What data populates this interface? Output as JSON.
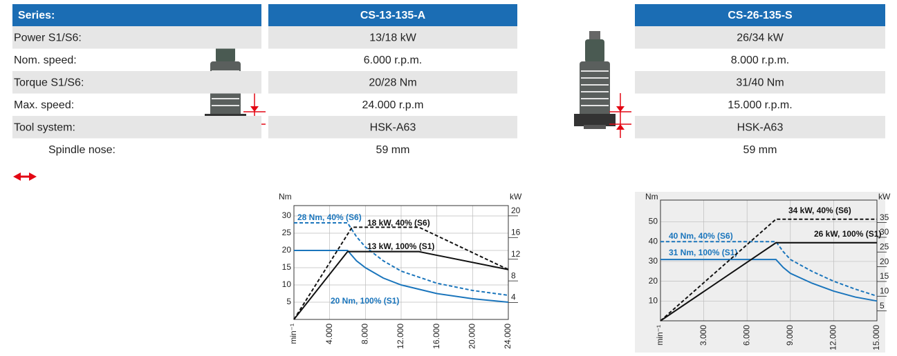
{
  "table": {
    "header": [
      "Series:",
      "CS-13-135-A",
      "CS-26-135-S"
    ],
    "rows": [
      [
        "Power S1/S6:",
        "13/18 kW",
        "26/34 kW"
      ],
      [
        "Nom. speed:",
        "6.000 r.p.m.",
        "8.000 r.p.m."
      ],
      [
        "Torque S1/S6:",
        "20/28 Nm",
        "31/40 Nm"
      ],
      [
        "Max. speed:",
        "24.000 r.p.m",
        "15.000 r.p.m."
      ],
      [
        "Tool system:",
        "HSK-A63",
        "HSK-A63"
      ],
      [
        "Spindle nose:",
        "59 mm",
        "59 mm"
      ]
    ]
  },
  "chart_data": [
    {
      "type": "line",
      "x_label": "min⁻¹",
      "y_label": "Nm",
      "y2_label": "kW",
      "grid": true,
      "background": "#ffffff",
      "xlim": [
        0,
        24000
      ],
      "xticks": [
        {
          "value": 4000,
          "label": "4.000"
        },
        {
          "value": 8000,
          "label": "8.000"
        },
        {
          "value": 12000,
          "label": "12.000"
        },
        {
          "value": 16000,
          "label": "16.000"
        },
        {
          "value": 20000,
          "label": "20.000"
        },
        {
          "value": 24000,
          "label": "24.000"
        }
      ],
      "ylim": [
        0,
        33
      ],
      "yticks": [
        5,
        10,
        15,
        20,
        25,
        30
      ],
      "y2lim": [
        0,
        21
      ],
      "y2ticks": [
        4,
        8,
        12,
        16,
        20
      ],
      "series": [
        {
          "name": "28 Nm, 40% (S6)",
          "color": "#1a75bc",
          "style": "dashed",
          "x": [
            0,
            6000,
            7000,
            8000,
            10000,
            12000,
            16000,
            20000,
            24000
          ],
          "values": [
            28,
            28,
            24,
            21,
            17,
            14,
            10.5,
            8.4,
            7
          ]
        },
        {
          "name": "20 Nm, 100% (S1)",
          "color": "#1a75bc",
          "style": "solid",
          "x": [
            0,
            6000,
            7000,
            8000,
            10000,
            12000,
            16000,
            20000,
            24000
          ],
          "values": [
            20,
            20,
            17,
            15,
            12,
            10,
            7.5,
            6,
            5
          ]
        },
        {
          "name": "18 kW, 40% (S6)",
          "color": "#111111",
          "style": "dashed",
          "axis": "y2",
          "x": [
            0,
            6500,
            14000,
            24000
          ],
          "values": [
            0,
            17,
            17,
            9.2
          ]
        },
        {
          "name": "13 kW, 100% (S1)",
          "color": "#111111",
          "style": "solid",
          "axis": "y2",
          "x": [
            0,
            6000,
            14000,
            24000
          ],
          "values": [
            0,
            12.5,
            12.5,
            9.2
          ]
        }
      ]
    },
    {
      "type": "line",
      "x_label": "min⁻¹",
      "y_label": "Nm",
      "y2_label": "kW",
      "grid": true,
      "background": "#eeeeee",
      "xlim": [
        0,
        15000
      ],
      "xticks": [
        {
          "value": 3000,
          "label": "3.000"
        },
        {
          "value": 6000,
          "label": "6.000"
        },
        {
          "value": 9000,
          "label": "9.000"
        },
        {
          "value": 12000,
          "label": "12.000"
        },
        {
          "value": 15000,
          "label": "15.000"
        }
      ],
      "ylim": [
        0,
        61
      ],
      "yticks": [
        10,
        20,
        30,
        40,
        50
      ],
      "y2lim": [
        0,
        41
      ],
      "y2ticks": [
        5,
        10,
        15,
        20,
        25,
        30,
        35
      ],
      "series": [
        {
          "name": "40 Nm, 40% (S6)",
          "color": "#1a75bc",
          "style": "dashed",
          "x": [
            0,
            8000,
            8500,
            9000,
            10500,
            12000,
            13500,
            15000
          ],
          "values": [
            40,
            40,
            35,
            31,
            25,
            20,
            16,
            12.5
          ]
        },
        {
          "name": "31 Nm, 100% (S1)",
          "color": "#1a75bc",
          "style": "solid",
          "x": [
            0,
            8000,
            8500,
            9000,
            10500,
            12000,
            13500,
            15000
          ],
          "values": [
            31,
            31,
            27,
            24,
            19,
            15,
            12,
            10
          ]
        },
        {
          "name": "34 kW, 40% (S6)",
          "color": "#111111",
          "style": "dashed",
          "axis": "y2",
          "x": [
            0,
            8000,
            15000
          ],
          "values": [
            0,
            34.5,
            34.5
          ]
        },
        {
          "name": "26 kW, 100% (S1)",
          "color": "#111111",
          "style": "solid",
          "axis": "y2",
          "x": [
            0,
            8000,
            15000
          ],
          "values": [
            0,
            26.5,
            26.5
          ]
        }
      ]
    }
  ]
}
